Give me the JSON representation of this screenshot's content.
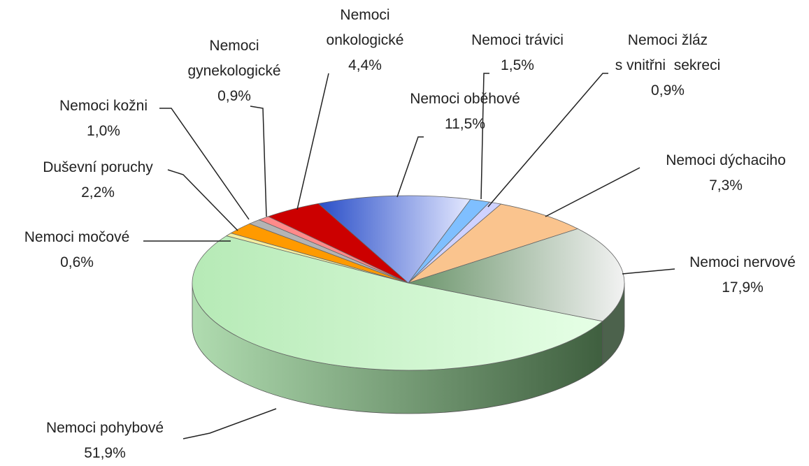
{
  "chart_data": {
    "type": "pie",
    "categories": [
      "Nemoci pohybové",
      "Nemoci močové",
      "Duševní poruchy",
      "Nemoci kožni",
      "Nemoci\ngynekologické",
      "Nemoci\nonkologické",
      "Nemoci oběhové",
      "Nemoci trávici",
      "Nemoci žláz\ns vnitřni  sekreci",
      "Nemoci dýchaciho",
      "Nemoci nervové"
    ],
    "values": [
      51.9,
      0.6,
      2.2,
      1.0,
      0.9,
      4.4,
      11.5,
      1.5,
      0.9,
      7.3,
      17.9
    ],
    "value_labels": [
      "51,9%",
      "0,6%",
      "2,2%",
      "1,0%",
      "0,9%",
      "4,4%",
      "11,5%",
      "1,5%",
      "0,9%",
      "7,3%",
      "17,9%"
    ],
    "colors": [
      "#c6f4c6",
      "#f2eda0",
      "#ff9a00",
      "#b4b4b4",
      "#ff8a8a",
      "#cc0000",
      "#3a5fd0",
      "#7fbfff",
      "#cfd2ff",
      "#fac48e",
      "#7fa47f"
    ]
  }
}
